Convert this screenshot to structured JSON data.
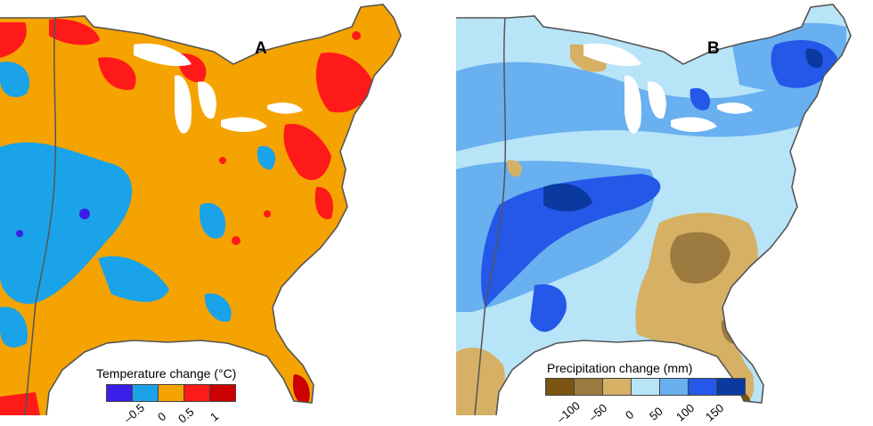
{
  "panels": [
    {
      "letter": "A",
      "legend_title": "Temperature change (°C)",
      "tick_labels": [
        "–0.5",
        "0",
        "0.5",
        "1"
      ],
      "scale_colors": [
        "#3b1ee8",
        "#1aa3e8",
        "#f5a300",
        "#ff1a1a",
        "#cc0000"
      ]
    },
    {
      "letter": "B",
      "legend_title": "Precipitation change (mm)",
      "tick_labels": [
        "–100",
        "–50",
        "0",
        "50",
        "100",
        "150"
      ],
      "scale_colors": [
        "#7a5410",
        "#9c7a40",
        "#d6b064",
        "#b8e4f8",
        "#68b0f0",
        "#2558e8",
        "#0a3aa0"
      ]
    }
  ]
}
